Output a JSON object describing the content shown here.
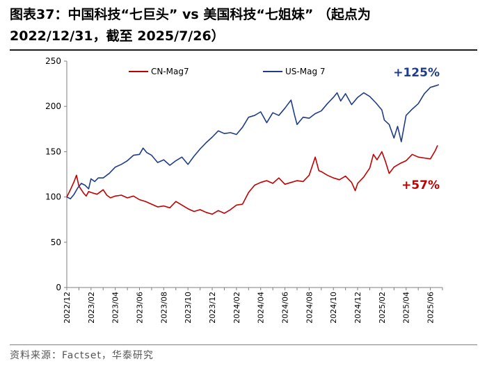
{
  "title": {
    "line1": "图表37：中国科技“七巨头” vs 美国科技“七姐妹” （起点为",
    "line2": "2022/12/31，截至 2025/7/26）"
  },
  "source": "资料来源：Factset，华泰研究",
  "chart_data": {
    "type": "line",
    "title": "中国科技“七巨头” vs 美国科技“七姐妹”（起点为2022/12/31，截至2025/7/26）",
    "ylim": [
      0,
      250
    ],
    "yticks": [
      0,
      50,
      100,
      150,
      200,
      250
    ],
    "xlim": [
      "2022/12",
      "2025/07"
    ],
    "x_tick_labels": [
      "2022/12",
      "2023/02",
      "2023/04",
      "2023/06",
      "2023/08",
      "2023/10",
      "2023/12",
      "2024/02",
      "2024/04",
      "2024/06",
      "2024/08",
      "2024/10",
      "2024/12",
      "2025/02",
      "2025/04",
      "2025/06"
    ],
    "legend_position": "top",
    "series": [
      {
        "name": "CN-Mag7",
        "color": "#c00000",
        "annotation": "+57%",
        "points": [
          [
            0,
            100
          ],
          [
            0.3,
            108
          ],
          [
            0.6,
            117
          ],
          [
            0.8,
            124
          ],
          [
            1.0,
            112
          ],
          [
            1.2,
            108
          ],
          [
            1.4,
            104
          ],
          [
            1.6,
            101
          ],
          [
            1.8,
            106
          ],
          [
            2.0,
            105
          ],
          [
            2.5,
            103
          ],
          [
            3.0,
            108
          ],
          [
            3.3,
            102
          ],
          [
            3.6,
            99
          ],
          [
            4.0,
            101
          ],
          [
            4.5,
            102
          ],
          [
            5.0,
            99
          ],
          [
            5.5,
            101
          ],
          [
            6.0,
            97
          ],
          [
            6.5,
            95
          ],
          [
            7.0,
            92
          ],
          [
            7.5,
            89
          ],
          [
            8.0,
            90
          ],
          [
            8.5,
            88
          ],
          [
            9.0,
            95
          ],
          [
            9.5,
            91
          ],
          [
            10.0,
            87
          ],
          [
            10.5,
            84
          ],
          [
            11.0,
            86
          ],
          [
            11.5,
            83
          ],
          [
            12.0,
            81
          ],
          [
            12.5,
            85
          ],
          [
            13.0,
            82
          ],
          [
            13.5,
            86
          ],
          [
            14.0,
            91
          ],
          [
            14.5,
            92
          ],
          [
            15.0,
            105
          ],
          [
            15.5,
            113
          ],
          [
            16.0,
            116
          ],
          [
            16.5,
            118
          ],
          [
            17.0,
            115
          ],
          [
            17.5,
            121
          ],
          [
            18.0,
            114
          ],
          [
            18.5,
            116
          ],
          [
            19.0,
            118
          ],
          [
            19.5,
            117
          ],
          [
            20.0,
            124
          ],
          [
            20.5,
            144
          ],
          [
            20.8,
            129
          ],
          [
            21.0,
            128
          ],
          [
            21.5,
            124
          ],
          [
            22.0,
            121
          ],
          [
            22.5,
            119
          ],
          [
            23.0,
            123
          ],
          [
            23.5,
            116
          ],
          [
            23.8,
            107
          ],
          [
            24.0,
            115
          ],
          [
            24.5,
            122
          ],
          [
            25.0,
            132
          ],
          [
            25.3,
            147
          ],
          [
            25.6,
            141
          ],
          [
            26.0,
            150
          ],
          [
            26.3,
            139
          ],
          [
            26.6,
            126
          ],
          [
            27.0,
            133
          ],
          [
            27.5,
            137
          ],
          [
            28.0,
            140
          ],
          [
            28.5,
            147
          ],
          [
            29.0,
            144
          ],
          [
            29.5,
            143
          ],
          [
            30.0,
            142
          ],
          [
            30.4,
            151
          ],
          [
            30.6,
            157
          ]
        ]
      },
      {
        "name": "US-Mag 7",
        "color": "#1f3c88",
        "annotation": "+125%",
        "points": [
          [
            0,
            100
          ],
          [
            0.3,
            98
          ],
          [
            0.6,
            103
          ],
          [
            0.9,
            110
          ],
          [
            1.2,
            115
          ],
          [
            1.5,
            113
          ],
          [
            1.8,
            109
          ],
          [
            2.0,
            120
          ],
          [
            2.3,
            117
          ],
          [
            2.6,
            121
          ],
          [
            3.0,
            121
          ],
          [
            3.5,
            126
          ],
          [
            4.0,
            133
          ],
          [
            4.5,
            136
          ],
          [
            5.0,
            140
          ],
          [
            5.5,
            146
          ],
          [
            6.0,
            147
          ],
          [
            6.3,
            154
          ],
          [
            6.6,
            149
          ],
          [
            7.0,
            146
          ],
          [
            7.5,
            138
          ],
          [
            8.0,
            141
          ],
          [
            8.5,
            135
          ],
          [
            9.0,
            140
          ],
          [
            9.5,
            144
          ],
          [
            10.0,
            136
          ],
          [
            10.5,
            145
          ],
          [
            11.0,
            153
          ],
          [
            11.5,
            160
          ],
          [
            12.0,
            166
          ],
          [
            12.5,
            173
          ],
          [
            13.0,
            170
          ],
          [
            13.5,
            171
          ],
          [
            14.0,
            169
          ],
          [
            14.5,
            177
          ],
          [
            15.0,
            188
          ],
          [
            15.5,
            190
          ],
          [
            16.0,
            194
          ],
          [
            16.5,
            182
          ],
          [
            17.0,
            193
          ],
          [
            17.5,
            190
          ],
          [
            18.0,
            198
          ],
          [
            18.5,
            207
          ],
          [
            18.8,
            190
          ],
          [
            19.0,
            180
          ],
          [
            19.5,
            188
          ],
          [
            20.0,
            187
          ],
          [
            20.5,
            192
          ],
          [
            21.0,
            195
          ],
          [
            21.5,
            203
          ],
          [
            22.0,
            210
          ],
          [
            22.3,
            215
          ],
          [
            22.6,
            206
          ],
          [
            23.0,
            214
          ],
          [
            23.5,
            202
          ],
          [
            24.0,
            210
          ],
          [
            24.5,
            215
          ],
          [
            25.0,
            211
          ],
          [
            25.5,
            204
          ],
          [
            26.0,
            196
          ],
          [
            26.2,
            185
          ],
          [
            26.6,
            180
          ],
          [
            27.0,
            165
          ],
          [
            27.3,
            178
          ],
          [
            27.6,
            161
          ],
          [
            28.0,
            190
          ],
          [
            28.5,
            197
          ],
          [
            29.0,
            203
          ],
          [
            29.5,
            214
          ],
          [
            30.0,
            221
          ],
          [
            30.5,
            223
          ],
          [
            30.7,
            224
          ]
        ]
      }
    ]
  }
}
